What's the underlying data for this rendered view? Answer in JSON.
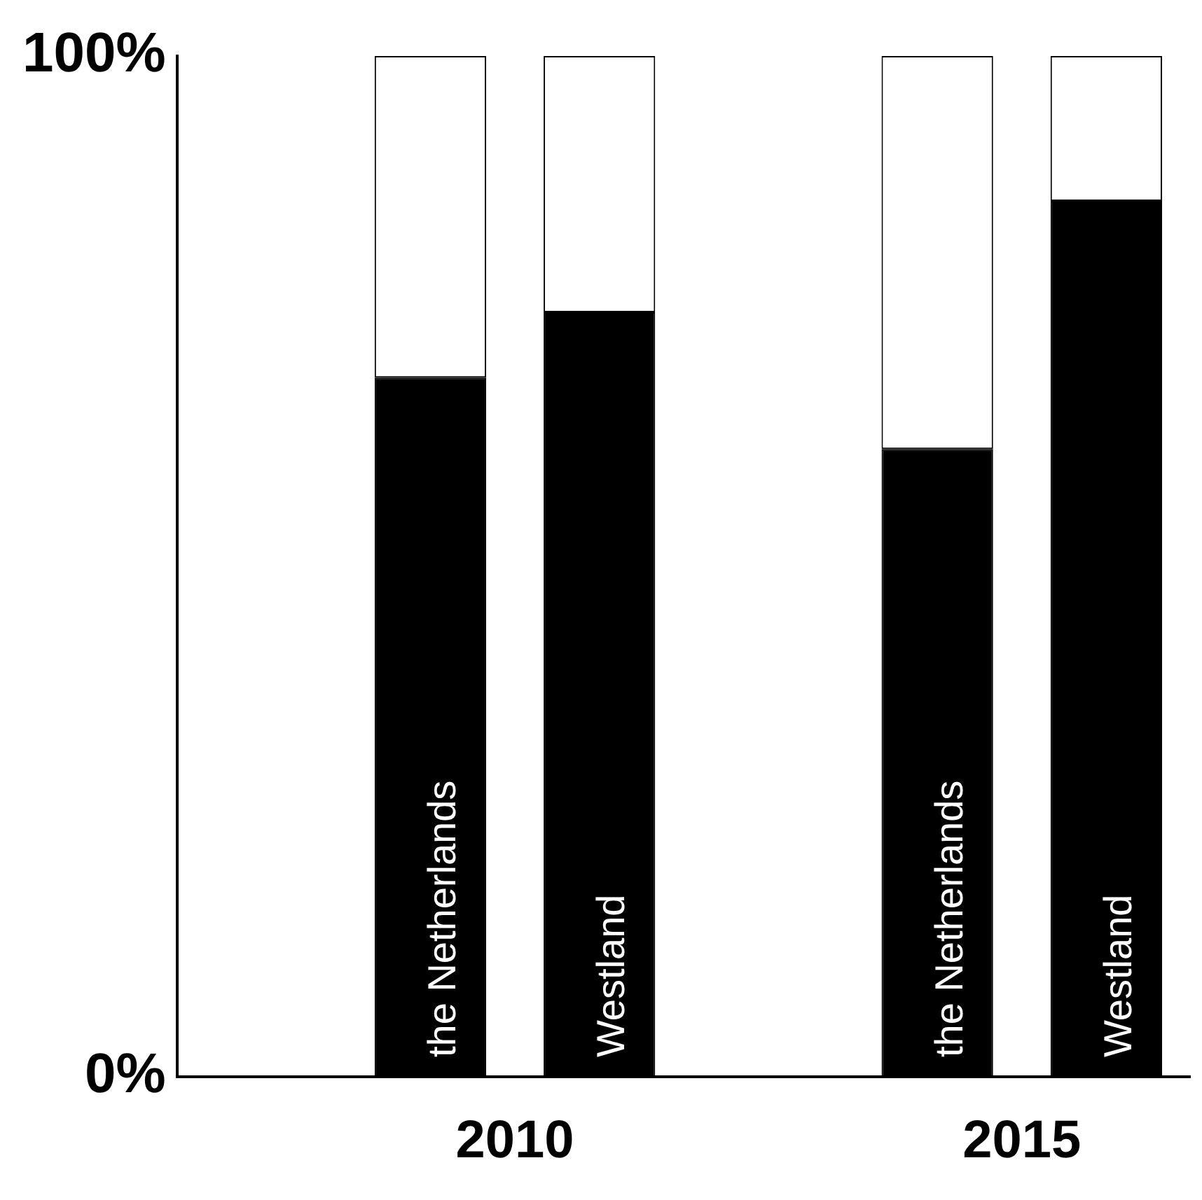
{
  "chart_data": {
    "type": "bar",
    "stacked": true,
    "categories": [
      null,
      "the Netherlands",
      "Westland",
      null,
      "the Netherlands",
      "Westland"
    ],
    "series": [
      {
        "color": "#000000",
        "values": [
          null,
          68.5,
          74.9,
          null,
          61.5,
          85.8
        ]
      },
      {
        "color": "#ffffff",
        "values": [
          null,
          31.5,
          25.1,
          null,
          38.5,
          14.2
        ]
      }
    ],
    "annotations": [
      "2010",
      "2015"
    ],
    "ylim": [
      0,
      100
    ],
    "yticks": [
      {
        "value": 0,
        "label": "0%"
      },
      {
        "value": 100,
        "label": "100%"
      }
    ],
    "grid": false,
    "legend": false
  }
}
